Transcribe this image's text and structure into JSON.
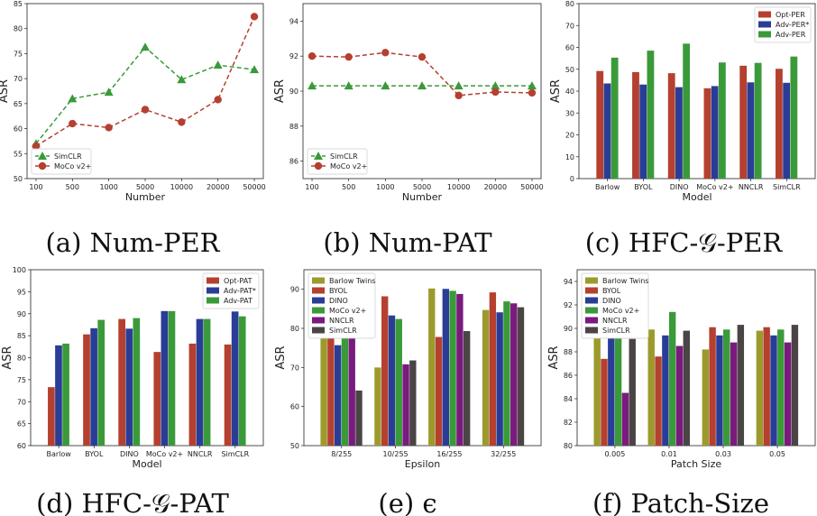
{
  "colors": {
    "green": "#3a9a3a",
    "red": "#b5402f",
    "blue": "#2a3d96",
    "olive": "#9c9a2c",
    "purple": "#7a1a7e",
    "dark": "#4a4444"
  },
  "chart_data": [
    {
      "type": "line",
      "caption": "(a) Num-PER",
      "xlabel": "Number",
      "ylabel": "ASR",
      "categories": [
        "100",
        "500",
        "1000",
        "5000",
        "10000",
        "20000",
        "50000"
      ],
      "ylim": [
        50,
        85
      ],
      "yticks": [
        50,
        55,
        60,
        65,
        70,
        75,
        80,
        85
      ],
      "legend_position": "lower-left",
      "series": [
        {
          "name": "SimCLR",
          "color": "#3a9a3a",
          "marker": "triangle",
          "dash": true,
          "values": [
            57.0,
            66.0,
            67.3,
            76.3,
            69.8,
            72.7,
            71.8
          ]
        },
        {
          "name": "MoCo v2+",
          "color": "#b5402f",
          "marker": "circle",
          "dash": true,
          "values": [
            56.5,
            61.0,
            60.2,
            63.8,
            61.3,
            65.8,
            82.4
          ]
        }
      ]
    },
    {
      "type": "line",
      "caption": "(b) Num-PAT",
      "xlabel": "Number",
      "ylabel": "ASR",
      "categories": [
        "100",
        "500",
        "1000",
        "5000",
        "10000",
        "20000",
        "50000"
      ],
      "ylim": [
        85,
        95
      ],
      "yticks": [
        86,
        88,
        90,
        92,
        94
      ],
      "legend_position": "lower-left",
      "series": [
        {
          "name": "SimCLR",
          "color": "#3a9a3a",
          "marker": "triangle",
          "dash": true,
          "values": [
            90.3,
            90.3,
            90.3,
            90.3,
            90.3,
            90.3,
            90.3
          ]
        },
        {
          "name": "MoCo v2+",
          "color": "#b5402f",
          "marker": "circle",
          "dash": true,
          "values": [
            92.0,
            91.95,
            92.2,
            91.95,
            89.75,
            89.95,
            89.9
          ]
        }
      ]
    },
    {
      "type": "bar",
      "caption": "(c) HFC-𝒢-PER",
      "xlabel": "Model",
      "ylabel": "ASR",
      "categories": [
        "Barlow",
        "BYOL",
        "DINO",
        "MoCo v2+",
        "NNCLR",
        "SimCLR"
      ],
      "ylim": [
        0,
        80
      ],
      "yticks": [
        0,
        10,
        20,
        30,
        40,
        50,
        60,
        70,
        80
      ],
      "legend_position": "top-right",
      "series": [
        {
          "name": "Opt-PER",
          "color": "#b5402f",
          "values": [
            49.2,
            48.7,
            48.2,
            41.3,
            51.6,
            50.2
          ]
        },
        {
          "name": "Adv-PER*",
          "color": "#2a3d96",
          "values": [
            43.5,
            43.0,
            41.8,
            42.3,
            44.0,
            43.8
          ]
        },
        {
          "name": "Adv-PER",
          "color": "#3a9a3a",
          "values": [
            55.3,
            58.5,
            61.7,
            53.1,
            52.9,
            55.8
          ]
        }
      ]
    },
    {
      "type": "bar",
      "caption": "(d) HFC-𝒢-PAT",
      "xlabel": "Model",
      "ylabel": "ASR",
      "categories": [
        "Barlow",
        "BYOL",
        "DINO",
        "MoCo v2+",
        "NNCLR",
        "SimCLR"
      ],
      "ylim": [
        60,
        100
      ],
      "yticks": [
        60,
        65,
        70,
        75,
        80,
        85,
        90,
        95,
        100
      ],
      "legend_position": "top-right",
      "series": [
        {
          "name": "Opt-PAT",
          "color": "#b5402f",
          "values": [
            73.3,
            85.3,
            88.8,
            81.3,
            83.2,
            83.0
          ]
        },
        {
          "name": "Adv-PAT*",
          "color": "#2a3d96",
          "values": [
            82.8,
            86.7,
            86.6,
            90.6,
            88.8,
            90.5
          ]
        },
        {
          "name": "Adv-PAT",
          "color": "#3a9a3a",
          "values": [
            83.2,
            88.6,
            89.0,
            90.6,
            88.8,
            89.4
          ]
        }
      ]
    },
    {
      "type": "bar",
      "caption": "(e) ϵ",
      "xlabel": "Epsilon",
      "ylabel": "ASR",
      "categories": [
        "8/255",
        "10/255",
        "16/255",
        "32/255"
      ],
      "ylim": [
        50,
        95
      ],
      "yticks": [
        50,
        60,
        70,
        80,
        90
      ],
      "legend_position": "top-left",
      "series": [
        {
          "name": "Barlow Twins",
          "color": "#9c9a2c",
          "values": [
            86.5,
            70.0,
            90.2,
            84.7
          ]
        },
        {
          "name": "BYOL",
          "color": "#b5402f",
          "values": [
            88.0,
            88.2,
            77.8,
            89.2
          ]
        },
        {
          "name": "DINO",
          "color": "#2a3d96",
          "values": [
            75.7,
            83.3,
            90.1,
            84.1
          ]
        },
        {
          "name": "MoCo v2+",
          "color": "#3a9a3a",
          "values": [
            78.1,
            82.4,
            89.6,
            86.9
          ]
        },
        {
          "name": "NNCLR",
          "color": "#7a1a7e",
          "values": [
            86.0,
            70.8,
            88.8,
            86.4
          ]
        },
        {
          "name": "SimCLR",
          "color": "#4a4444",
          "values": [
            64.1,
            71.8,
            79.3,
            85.4
          ]
        }
      ]
    },
    {
      "type": "bar",
      "caption": "(f) Patch-Size",
      "xlabel": "Patch Size",
      "ylabel": "ASR",
      "categories": [
        "0.005",
        "0.01",
        "0.03",
        "0.05"
      ],
      "ylim": [
        80,
        95
      ],
      "yticks": [
        80,
        82,
        84,
        86,
        88,
        90,
        92,
        94
      ],
      "legend_position": "top-left",
      "series": [
        {
          "name": "Barlow Twins",
          "color": "#9c9a2c",
          "values": [
            89.6,
            89.9,
            88.2,
            89.8
          ]
        },
        {
          "name": "BYOL",
          "color": "#b5402f",
          "values": [
            87.4,
            87.6,
            90.1,
            90.1
          ]
        },
        {
          "name": "DINO",
          "color": "#2a3d96",
          "values": [
            89.4,
            89.4,
            89.4,
            89.4
          ]
        },
        {
          "name": "MoCo v2+",
          "color": "#3a9a3a",
          "values": [
            90.5,
            91.4,
            89.9,
            89.9
          ]
        },
        {
          "name": "NNCLR",
          "color": "#7a1a7e",
          "values": [
            84.5,
            88.5,
            88.8,
            88.8
          ]
        },
        {
          "name": "SimCLR",
          "color": "#4a4444",
          "values": [
            89.1,
            89.8,
            90.3,
            90.3
          ]
        }
      ]
    }
  ]
}
